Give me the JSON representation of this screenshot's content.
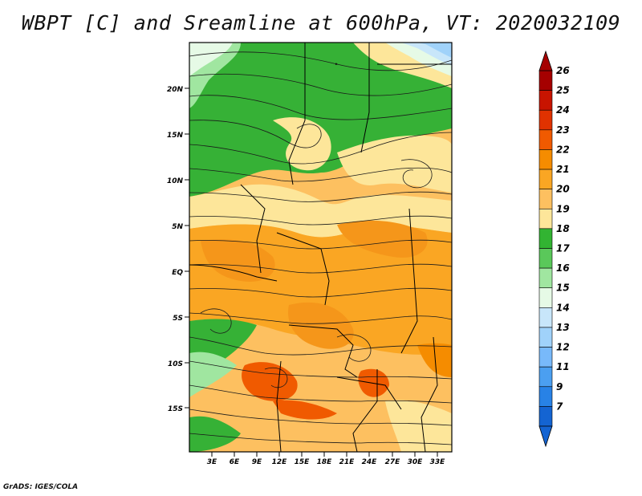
{
  "title": "WBPT [C] and Sreamline at 600hPa, VT: 2020032109",
  "credit": "GrADS: IGES/COLA",
  "lat_labels": [
    "20N",
    "15N",
    "10N",
    "5N",
    "EQ",
    "5S",
    "10S",
    "15S"
  ],
  "lon_labels": [
    "3E",
    "6E",
    "9E",
    "12E",
    "15E",
    "18E",
    "21E",
    "24E",
    "27E",
    "30E",
    "33E"
  ],
  "colorbar": {
    "labels": [
      "26",
      "25",
      "24",
      "23",
      "22",
      "21",
      "20",
      "19",
      "18",
      "17",
      "16",
      "15",
      "14",
      "13",
      "12",
      "11",
      "9",
      "7"
    ],
    "colors": [
      "#a50000",
      "#c81400",
      "#e03200",
      "#f05a00",
      "#f58c00",
      "#faa623",
      "#fdc060",
      "#fde69a",
      "#32b432",
      "#5ac85a",
      "#a0e6a0",
      "#e6fae6",
      "#c8e6fa",
      "#a0d2fa",
      "#78b9fa",
      "#4b9ff0",
      "#2882e6",
      "#1464d2"
    ]
  },
  "field_colors": {
    "green_dark": "#36b136",
    "green_mid": "#5ac85a",
    "green_light": "#a0e6a0",
    "pale_cyan": "#e6fae6",
    "light_blue": "#c8e6fa",
    "blue": "#a0d2fa",
    "cream": "#fde69a",
    "light_orange": "#fdc060",
    "orange": "#faa623",
    "dark_orange": "#f58c00",
    "red_orange": "#f05a00",
    "streamline": "#1a1a1a",
    "boundary": "#000000"
  }
}
